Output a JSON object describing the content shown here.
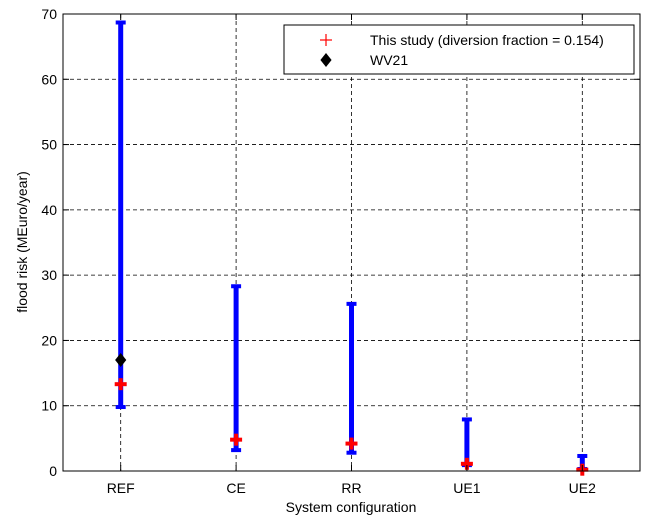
{
  "chart_data": {
    "type": "errorbar",
    "xlabel": "System configuration",
    "ylabel": "flood risk (MEuro/year)",
    "ylim": [
      0,
      70
    ],
    "yticks": [
      0,
      10,
      20,
      30,
      40,
      50,
      60,
      70
    ],
    "grid": true,
    "legend_position": "top-right",
    "categories": [
      "REF",
      "CE",
      "RR",
      "UE1",
      "UE2"
    ],
    "ranges": [
      {
        "category": "REF",
        "low": 9.8,
        "high": 68.7
      },
      {
        "category": "CE",
        "low": 3.2,
        "high": 28.3
      },
      {
        "category": "RR",
        "low": 2.8,
        "high": 25.6
      },
      {
        "category": "UE1",
        "low": 0.9,
        "high": 7.9
      },
      {
        "category": "UE2",
        "low": 0.3,
        "high": 2.3
      }
    ],
    "series": [
      {
        "name": "This study (diversion fraction = 0.154)",
        "marker": "plus",
        "color": "#ff0000",
        "values": [
          13.3,
          4.8,
          4.2,
          1.1,
          0.2
        ]
      },
      {
        "name": "WV21",
        "marker": "diamond",
        "color": "#000000",
        "values": [
          17.0,
          null,
          null,
          null,
          null
        ]
      }
    ],
    "range_color": "#0000ff"
  }
}
